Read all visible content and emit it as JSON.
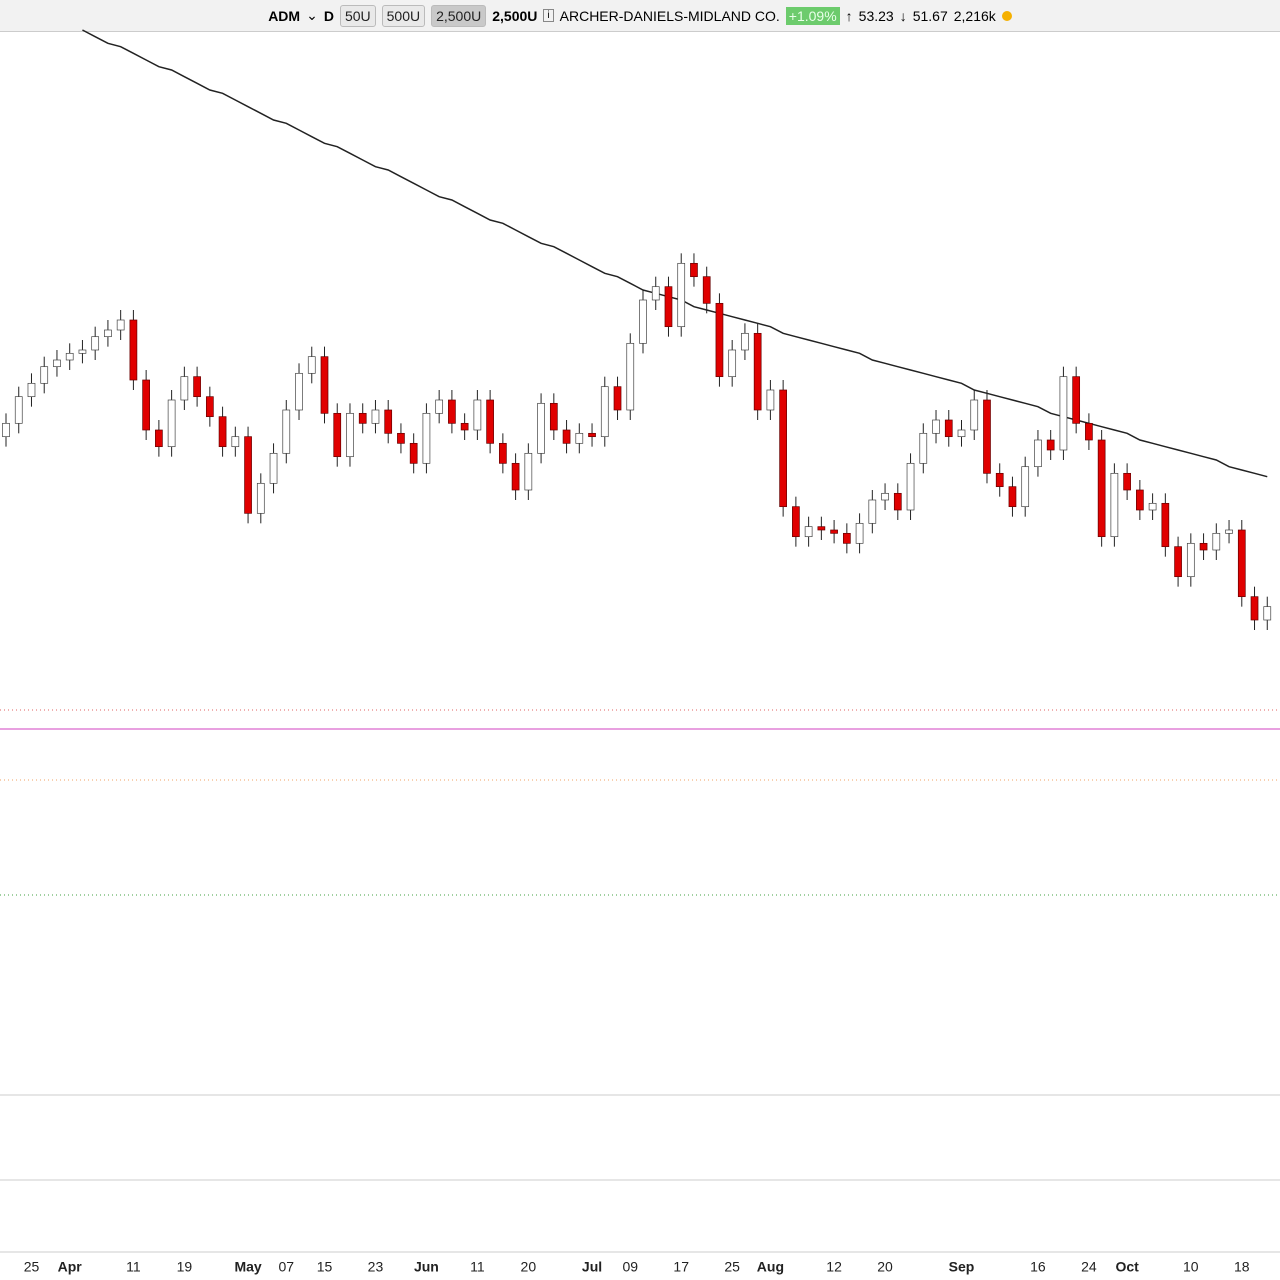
{
  "toolbar": {
    "symbol": "ADM",
    "interval": "D",
    "buttons": [
      "50U",
      "500U",
      "2,500U"
    ],
    "range": "2,500U",
    "company": "ARCHER-DANIELS-MIDLAND CO.",
    "change": "+1.09%",
    "high": "53.23",
    "low": "51.67",
    "volume": "2,216k"
  },
  "chart_data": {
    "type": "candlestick",
    "categories": [
      null,
      null,
      "25",
      null,
      null,
      "Apr",
      null,
      null,
      null,
      null,
      "11",
      null,
      null,
      null,
      "19",
      null,
      null,
      null,
      null,
      "May",
      null,
      null,
      "07",
      null,
      null,
      "15",
      null,
      null,
      null,
      "23",
      null,
      null,
      null,
      "Jun",
      null,
      null,
      null,
      "11",
      null,
      null,
      null,
      "20",
      null,
      null,
      null,
      null,
      "Jul",
      null,
      null,
      "09",
      null,
      null,
      null,
      "17",
      null,
      null,
      null,
      "25",
      null,
      null,
      "Aug",
      null,
      null,
      null,
      null,
      "12",
      null,
      null,
      null,
      "20",
      null,
      null,
      null,
      null,
      null,
      "Sep",
      null,
      null,
      null,
      null,
      null,
      "16",
      null,
      null,
      null,
      "24",
      null,
      null,
      "Oct",
      null,
      null,
      null,
      null,
      "10",
      null,
      null,
      null,
      "18",
      null,
      null
    ],
    "open": [
      55.8,
      56.2,
      57.0,
      57.4,
      57.9,
      58.1,
      58.3,
      58.4,
      58.8,
      59.0,
      59.3,
      57.5,
      56.0,
      55.5,
      56.9,
      57.6,
      57.0,
      56.4,
      55.5,
      55.8,
      53.5,
      54.4,
      55.3,
      56.6,
      57.7,
      58.2,
      56.5,
      55.2,
      56.5,
      56.2,
      56.6,
      55.9,
      55.6,
      55.0,
      56.5,
      56.9,
      56.2,
      56.0,
      56.9,
      55.6,
      55.0,
      54.2,
      55.3,
      56.8,
      56.0,
      55.6,
      55.9,
      55.8,
      57.3,
      56.6,
      58.6,
      59.9,
      60.3,
      59.1,
      61.0,
      60.6,
      59.8,
      57.6,
      58.4,
      58.9,
      56.6,
      57.2,
      53.7,
      52.8,
      53.1,
      53.0,
      52.9,
      52.6,
      53.2,
      53.9,
      54.1,
      53.6,
      55.0,
      55.9,
      56.3,
      55.8,
      56.0,
      56.9,
      54.7,
      54.3,
      53.7,
      54.9,
      55.7,
      55.4,
      57.6,
      56.2,
      55.7,
      52.8,
      54.7,
      54.2,
      53.6,
      53.8,
      52.5,
      51.6,
      52.6,
      52.4,
      52.9,
      53.0,
      51.0,
      50.3
    ],
    "high": [
      56.5,
      57.3,
      57.7,
      58.2,
      58.4,
      58.6,
      58.7,
      59.1,
      59.3,
      59.6,
      59.6,
      57.8,
      56.3,
      57.2,
      57.9,
      57.9,
      57.3,
      56.7,
      56.1,
      56.1,
      54.7,
      55.6,
      56.9,
      58.0,
      58.5,
      58.5,
      56.8,
      56.8,
      56.8,
      56.9,
      56.9,
      56.2,
      55.9,
      56.8,
      57.2,
      57.2,
      56.5,
      57.2,
      57.2,
      55.9,
      55.3,
      55.6,
      57.1,
      57.1,
      56.3,
      56.2,
      56.2,
      57.6,
      57.6,
      58.9,
      60.2,
      60.6,
      60.6,
      61.3,
      61.3,
      60.9,
      60.1,
      58.7,
      59.2,
      59.2,
      57.5,
      57.5,
      54.0,
      53.4,
      53.4,
      53.3,
      53.2,
      53.5,
      54.2,
      54.4,
      54.4,
      55.3,
      56.2,
      56.6,
      56.6,
      56.3,
      57.2,
      57.2,
      55.0,
      54.6,
      55.2,
      56.0,
      56.0,
      57.9,
      57.9,
      56.5,
      56.0,
      55.0,
      55.0,
      54.5,
      54.1,
      54.1,
      52.8,
      52.9,
      52.9,
      53.2,
      53.3,
      53.3,
      51.3,
      51.0
    ],
    "low": [
      55.5,
      55.9,
      56.7,
      57.1,
      57.6,
      57.8,
      58.0,
      58.1,
      58.5,
      58.7,
      57.2,
      55.7,
      55.2,
      55.2,
      56.6,
      56.7,
      56.1,
      55.2,
      55.2,
      53.2,
      53.2,
      54.1,
      55.0,
      56.3,
      57.4,
      56.2,
      54.9,
      54.9,
      55.9,
      55.9,
      55.6,
      55.3,
      54.7,
      54.7,
      56.2,
      55.9,
      55.7,
      55.7,
      55.3,
      54.7,
      53.9,
      53.9,
      55.0,
      55.7,
      55.3,
      55.3,
      55.5,
      55.5,
      56.3,
      56.3,
      58.3,
      59.6,
      58.8,
      58.8,
      60.3,
      59.5,
      57.3,
      57.3,
      58.1,
      56.3,
      56.3,
      53.4,
      52.5,
      52.5,
      52.7,
      52.6,
      52.3,
      52.3,
      52.9,
      53.6,
      53.3,
      53.3,
      54.7,
      55.6,
      55.5,
      55.5,
      55.7,
      54.4,
      54.0,
      53.4,
      53.4,
      54.6,
      55.1,
      55.1,
      55.9,
      55.4,
      52.5,
      52.5,
      53.9,
      53.3,
      53.3,
      52.2,
      51.3,
      51.3,
      52.1,
      52.1,
      52.6,
      50.7,
      50.0,
      50.0
    ],
    "close": [
      56.2,
      57.0,
      57.4,
      57.9,
      58.1,
      58.3,
      58.4,
      58.8,
      59.0,
      59.3,
      57.5,
      56.0,
      55.5,
      56.9,
      57.6,
      57.0,
      56.4,
      55.5,
      55.8,
      53.5,
      54.4,
      55.3,
      56.6,
      57.7,
      58.2,
      56.5,
      55.2,
      56.5,
      56.2,
      56.6,
      55.9,
      55.6,
      55.0,
      56.5,
      56.9,
      56.2,
      56.0,
      56.9,
      55.6,
      55.0,
      54.2,
      55.3,
      56.8,
      56.0,
      55.6,
      55.9,
      55.8,
      57.3,
      56.6,
      58.6,
      59.9,
      60.3,
      59.1,
      61.0,
      60.6,
      59.8,
      57.6,
      58.4,
      58.9,
      56.6,
      57.2,
      53.7,
      52.8,
      53.1,
      53.0,
      52.9,
      52.6,
      53.2,
      53.9,
      54.1,
      53.6,
      55.0,
      55.9,
      56.3,
      55.8,
      56.0,
      56.9,
      54.7,
      54.3,
      53.7,
      54.9,
      55.7,
      55.4,
      57.6,
      56.2,
      55.7,
      52.8,
      54.7,
      54.2,
      53.6,
      53.8,
      52.5,
      51.6,
      52.6,
      52.4,
      52.9,
      53.0,
      51.0,
      50.3,
      50.7
    ],
    "moving_average": {
      "color": "#222222",
      "values": [
        null,
        null,
        null,
        null,
        null,
        null,
        68.0,
        67.8,
        67.6,
        67.5,
        67.3,
        67.1,
        66.9,
        66.8,
        66.6,
        66.4,
        66.2,
        66.1,
        65.9,
        65.7,
        65.5,
        65.3,
        65.2,
        65.0,
        64.8,
        64.6,
        64.5,
        64.3,
        64.1,
        63.9,
        63.8,
        63.6,
        63.4,
        63.2,
        63.0,
        62.9,
        62.7,
        62.5,
        62.3,
        62.2,
        62.0,
        61.8,
        61.6,
        61.5,
        61.3,
        61.1,
        60.9,
        60.7,
        60.6,
        60.4,
        60.2,
        60.1,
        60.0,
        59.9,
        59.7,
        59.6,
        59.5,
        59.4,
        59.3,
        59.2,
        59.1,
        58.9,
        58.8,
        58.7,
        58.6,
        58.5,
        58.4,
        58.3,
        58.1,
        58.0,
        57.9,
        57.8,
        57.7,
        57.6,
        57.5,
        57.4,
        57.2,
        57.1,
        57.0,
        56.9,
        56.8,
        56.7,
        56.5,
        56.4,
        56.3,
        56.2,
        56.1,
        56.0,
        55.9,
        55.7,
        55.6,
        55.5,
        55.4,
        55.3,
        55.2,
        55.1,
        54.9,
        54.8,
        54.7,
        54.6
      ]
    },
    "up_color": "#ffffff",
    "down_color": "#e00000",
    "ylim": [
      47.9,
      68
    ]
  }
}
